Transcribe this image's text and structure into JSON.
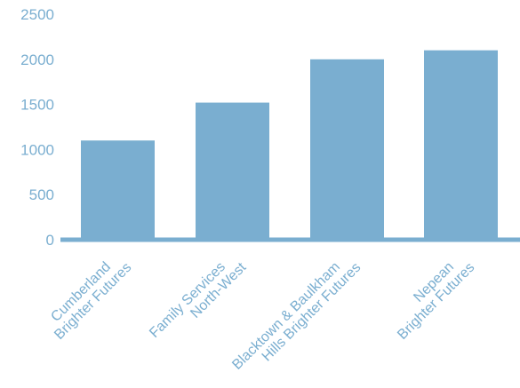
{
  "chart_data": {
    "type": "bar",
    "title": "",
    "xlabel": "",
    "ylabel": "",
    "categories": [
      [
        "Cumberland",
        "Brighter Futures"
      ],
      [
        "Family Services",
        "North-West"
      ],
      [
        "Blacktown & Baulkham",
        "Hills Brighter Futures"
      ],
      [
        "Nepean",
        "Brighter Futures"
      ]
    ],
    "values": [
      1100,
      1520,
      2000,
      2100
    ],
    "ylim": [
      0,
      2500
    ],
    "yticks": [
      "0",
      "500",
      "1000",
      "1500",
      "2000",
      "2500"
    ],
    "grid": false,
    "legend": "none",
    "colors": {
      "bar": "#7aaed0",
      "axis": "#7aaed0",
      "text": "#7aaed0"
    }
  }
}
